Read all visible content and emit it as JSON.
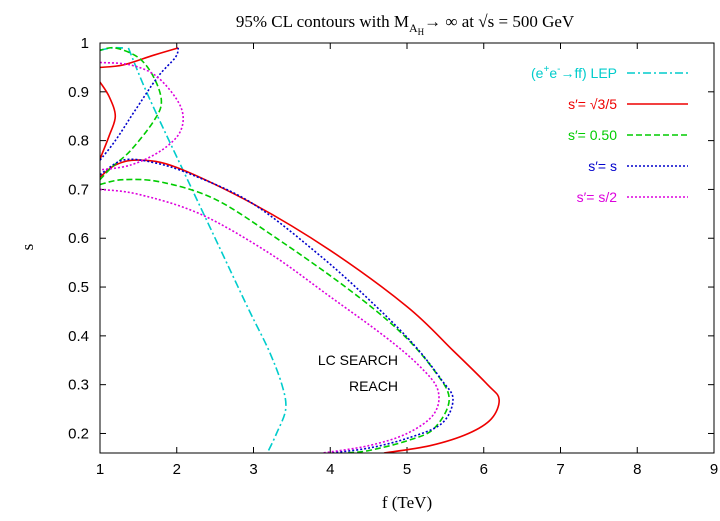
{
  "chart_data": {
    "type": "line",
    "title": {
      "prefix": "95% CL contours with M",
      "sub": "A",
      "subsub": "H",
      "arrow": "→",
      "middle": " ∞ at ",
      "sqrt": "√",
      "suffix": "s = 500 GeV"
    },
    "xlabel": "f (TeV)",
    "ylabel": "s",
    "xlim": [
      1,
      9
    ],
    "ylim": [
      0.16,
      1.0
    ],
    "xticks": [
      "1",
      "2",
      "3",
      "4",
      "5",
      "6",
      "7",
      "8",
      "9"
    ],
    "yticks": [
      "0.2",
      "0.3",
      "0.4",
      "0.5",
      "0.6",
      "0.7",
      "0.8",
      "0.9",
      "1"
    ],
    "legend_position": "top-right",
    "annotation": [
      "LC SEARCH",
      "REACH"
    ],
    "series": [
      {
        "key": "lep",
        "legend": {
          "pre": "(e",
          "sup1": "+",
          "mid": "e",
          "sup2": "-",
          "post": "→ff) LEP"
        },
        "color": "#00cccc",
        "style": "dash-dot",
        "segments": [
          [
            [
              1.37,
              0.99
            ],
            [
              1.55,
              0.92
            ],
            [
              1.75,
              0.85
            ],
            [
              2.05,
              0.75
            ],
            [
              2.35,
              0.65
            ],
            [
              2.65,
              0.55
            ],
            [
              2.95,
              0.45
            ],
            [
              3.2,
              0.37
            ],
            [
              3.37,
              0.3
            ],
            [
              3.42,
              0.25
            ],
            [
              3.3,
              0.2
            ],
            [
              3.18,
              0.16
            ]
          ],
          [
            [
              1.0,
              0.985
            ],
            [
              1.15,
              0.99
            ],
            [
              1.3,
              0.99
            ]
          ]
        ]
      },
      {
        "key": "sqrt35",
        "legend": {
          "text": "s′= √3/5"
        },
        "color": "#ee0000",
        "style": "solid",
        "segments": [
          [
            [
              1.0,
              0.92
            ],
            [
              1.12,
              0.89
            ],
            [
              1.2,
              0.85
            ],
            [
              1.12,
              0.81
            ],
            [
              1.02,
              0.77
            ],
            [
              1.0,
              0.76
            ]
          ],
          [
            [
              1.0,
              0.95
            ],
            [
              1.3,
              0.955
            ],
            [
              1.7,
              0.975
            ],
            [
              2.02,
              0.99
            ]
          ],
          [
            [
              1.0,
              0.725
            ],
            [
              1.2,
              0.75
            ],
            [
              1.5,
              0.76
            ],
            [
              2.0,
              0.745
            ],
            [
              3.0,
              0.67
            ],
            [
              4.0,
              0.575
            ],
            [
              5.0,
              0.46
            ],
            [
              5.6,
              0.37
            ],
            [
              6.05,
              0.3
            ],
            [
              6.2,
              0.27
            ],
            [
              6.1,
              0.23
            ],
            [
              5.8,
              0.2
            ],
            [
              5.3,
              0.175
            ],
            [
              4.7,
              0.16
            ]
          ]
        ]
      },
      {
        "key": "s050",
        "legend": {
          "text": "s′= 0.50"
        },
        "color": "#00cc00",
        "style": "dashed",
        "segments": [
          [
            [
              1.0,
              0.72
            ],
            [
              1.15,
              0.745
            ],
            [
              1.4,
              0.78
            ],
            [
              1.7,
              0.84
            ],
            [
              1.8,
              0.88
            ],
            [
              1.7,
              0.93
            ],
            [
              1.5,
              0.97
            ],
            [
              1.2,
              0.99
            ],
            [
              1.0,
              0.985
            ]
          ],
          [
            [
              1.0,
              0.71
            ],
            [
              1.3,
              0.72
            ],
            [
              1.8,
              0.715
            ],
            [
              2.5,
              0.68
            ],
            [
              3.3,
              0.6
            ],
            [
              4.2,
              0.5
            ],
            [
              4.9,
              0.41
            ],
            [
              5.35,
              0.33
            ],
            [
              5.55,
              0.27
            ],
            [
              5.35,
              0.21
            ],
            [
              5.0,
              0.185
            ],
            [
              4.5,
              0.165
            ],
            [
              4.2,
              0.16
            ]
          ]
        ]
      },
      {
        "key": "ss",
        "legend": {
          "text": "s′= s"
        },
        "color": "#0000cc",
        "style": "dotted",
        "segments": [
          [
            [
              1.0,
              0.76
            ],
            [
              1.2,
              0.8
            ],
            [
              1.45,
              0.86
            ],
            [
              1.75,
              0.93
            ],
            [
              1.98,
              0.97
            ],
            [
              2.02,
              0.99
            ]
          ],
          [
            [
              1.0,
              0.73
            ],
            [
              1.3,
              0.76
            ],
            [
              1.7,
              0.755
            ],
            [
              2.2,
              0.73
            ],
            [
              3.0,
              0.67
            ],
            [
              3.9,
              0.56
            ],
            [
              4.6,
              0.46
            ],
            [
              5.1,
              0.38
            ],
            [
              5.45,
              0.31
            ],
            [
              5.6,
              0.27
            ],
            [
              5.45,
              0.22
            ],
            [
              5.0,
              0.19
            ],
            [
              4.5,
              0.17
            ],
            [
              4.0,
              0.16
            ]
          ]
        ]
      },
      {
        "key": "shalf",
        "legend": {
          "text": "s′= s/2"
        },
        "color": "#dd00dd",
        "style": "dotted",
        "segments": [
          [
            [
              1.0,
              0.96
            ],
            [
              1.4,
              0.955
            ],
            [
              1.75,
              0.93
            ],
            [
              2.05,
              0.87
            ],
            [
              2.05,
              0.82
            ],
            [
              1.8,
              0.78
            ],
            [
              1.4,
              0.75
            ],
            [
              1.0,
              0.74
            ]
          ],
          [
            [
              1.0,
              0.7
            ],
            [
              1.5,
              0.69
            ],
            [
              2.3,
              0.65
            ],
            [
              3.2,
              0.57
            ],
            [
              4.0,
              0.48
            ],
            [
              4.7,
              0.4
            ],
            [
              5.15,
              0.34
            ],
            [
              5.4,
              0.29
            ],
            [
              5.35,
              0.24
            ],
            [
              5.0,
              0.2
            ],
            [
              4.5,
              0.175
            ],
            [
              3.9,
              0.16
            ]
          ]
        ]
      }
    ]
  }
}
